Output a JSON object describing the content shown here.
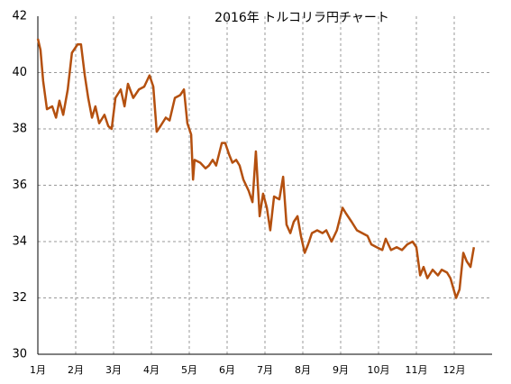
{
  "chart_data": {
    "type": "line",
    "title": "2016年 トルコリラ円チャート",
    "color": "#b4500f",
    "grid": true,
    "ylim": [
      30,
      42
    ],
    "yticks": [
      30,
      32,
      34,
      36,
      38,
      40,
      42
    ],
    "xlim": [
      0,
      12
    ],
    "xticks": [
      {
        "value": 0,
        "label": "1月"
      },
      {
        "value": 1,
        "label": "2月"
      },
      {
        "value": 2,
        "label": "3月"
      },
      {
        "value": 3,
        "label": "4月"
      },
      {
        "value": 4,
        "label": "5月"
      },
      {
        "value": 5,
        "label": "6月"
      },
      {
        "value": 6,
        "label": "7月"
      },
      {
        "value": 7,
        "label": "8月"
      },
      {
        "value": 8,
        "label": "9月"
      },
      {
        "value": 9,
        "label": "10月"
      },
      {
        "value": 10,
        "label": "11月"
      },
      {
        "value": 11,
        "label": "12月"
      }
    ],
    "x": [
      0,
      0.07,
      0.14,
      0.24,
      0.38,
      0.48,
      0.57,
      0.67,
      0.79,
      0.9,
      1.05,
      1.14,
      1.24,
      1.33,
      1.43,
      1.52,
      1.62,
      1.76,
      1.86,
      1.95,
      2.05,
      2.19,
      2.29,
      2.38,
      2.52,
      2.67,
      2.81,
      2.95,
      3.05,
      3.14,
      3.24,
      3.38,
      3.48,
      3.62,
      3.76,
      3.86,
      3.95,
      4.05,
      4.1,
      4.14,
      4.29,
      4.43,
      4.52,
      4.62,
      4.71,
      4.86,
      4.95,
      5.05,
      5.14,
      5.24,
      5.33,
      5.43,
      5.57,
      5.67,
      5.76,
      5.86,
      5.95,
      6.05,
      6.14,
      6.24,
      6.38,
      6.48,
      6.57,
      6.67,
      6.76,
      6.86,
      6.95,
      7.05,
      7.14,
      7.24,
      7.38,
      7.52,
      7.62,
      7.76,
      7.9,
      8.05,
      8.14,
      8.29,
      8.43,
      8.57,
      8.71,
      8.81,
      8.95,
      9.1,
      9.19,
      9.33,
      9.48,
      9.62,
      9.76,
      9.9,
      10.0,
      10.1,
      10.19,
      10.29,
      10.43,
      10.57,
      10.67,
      10.81,
      10.9,
      11.05,
      11.14,
      11.24,
      11.33,
      11.43,
      11.52
    ],
    "values": [
      41.2,
      40.8,
      39.7,
      38.7,
      38.8,
      38.4,
      39.0,
      38.5,
      39.4,
      40.7,
      41.0,
      41.0,
      39.9,
      39.1,
      38.4,
      38.8,
      38.2,
      38.5,
      38.1,
      38.0,
      39.1,
      39.4,
      38.8,
      39.6,
      39.1,
      39.4,
      39.5,
      39.9,
      39.5,
      37.9,
      38.1,
      38.4,
      38.3,
      39.1,
      39.2,
      39.4,
      38.2,
      37.8,
      36.2,
      36.9,
      36.8,
      36.6,
      36.7,
      36.9,
      36.7,
      37.5,
      37.5,
      37.1,
      36.8,
      36.9,
      36.7,
      36.2,
      35.8,
      35.4,
      37.2,
      34.9,
      35.7,
      35.2,
      34.4,
      35.6,
      35.5,
      36.3,
      34.6,
      34.3,
      34.7,
      34.9,
      34.2,
      33.6,
      33.9,
      34.3,
      34.4,
      34.3,
      34.4,
      34.0,
      34.4,
      35.2,
      35.0,
      34.7,
      34.4,
      34.3,
      34.2,
      33.9,
      33.8,
      33.7,
      34.1,
      33.7,
      33.8,
      33.7,
      33.9,
      34.0,
      33.8,
      32.8,
      33.1,
      32.7,
      33.0,
      32.8,
      33.0,
      32.9,
      32.7,
      32.0,
      32.3,
      33.6,
      33.3,
      33.1,
      33.8
    ]
  }
}
